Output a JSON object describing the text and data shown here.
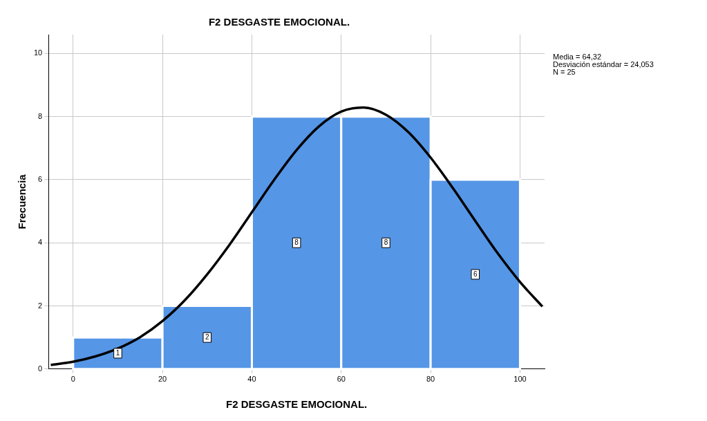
{
  "chart_data": {
    "type": "histogram",
    "title": "F2 DESGASTE EMOCIONAL.",
    "xlabel": "F2 DESGASTE EMOCIONAL.",
    "ylabel": "Frecuencia",
    "bins": [
      0,
      20,
      40,
      60,
      80,
      100
    ],
    "values": [
      1,
      2,
      8,
      8,
      6
    ],
    "color": "#5596e6",
    "value_labels": [
      "1",
      "2",
      "8",
      "8",
      "6"
    ],
    "xlim": [
      -5.5,
      105.5
    ],
    "xticks": [
      0,
      20,
      40,
      60,
      80,
      100
    ],
    "ylim": [
      0,
      10.6
    ],
    "yticks": [
      0,
      2,
      4,
      6,
      8,
      10
    ],
    "grid": true,
    "legend": false,
    "annotations": [
      "Media = 64,32",
      "Desviación estándar = 24,053",
      "N = 25"
    ],
    "series": [
      {
        "type": "line",
        "color": "#000000",
        "x": [
          -5,
          0,
          5,
          10,
          15,
          20,
          25,
          30,
          35,
          40,
          45,
          50,
          55,
          60,
          65,
          70,
          75,
          80,
          85,
          90,
          95,
          100,
          105
        ],
        "values": [
          0.13,
          0.23,
          0.4,
          0.65,
          1.01,
          1.52,
          2.18,
          3.0,
          3.94,
          4.97,
          6.0,
          6.94,
          7.69,
          8.16,
          8.29,
          8.06,
          7.51,
          6.7,
          5.73,
          4.69,
          3.67,
          2.76,
          1.98
        ]
      }
    ]
  }
}
